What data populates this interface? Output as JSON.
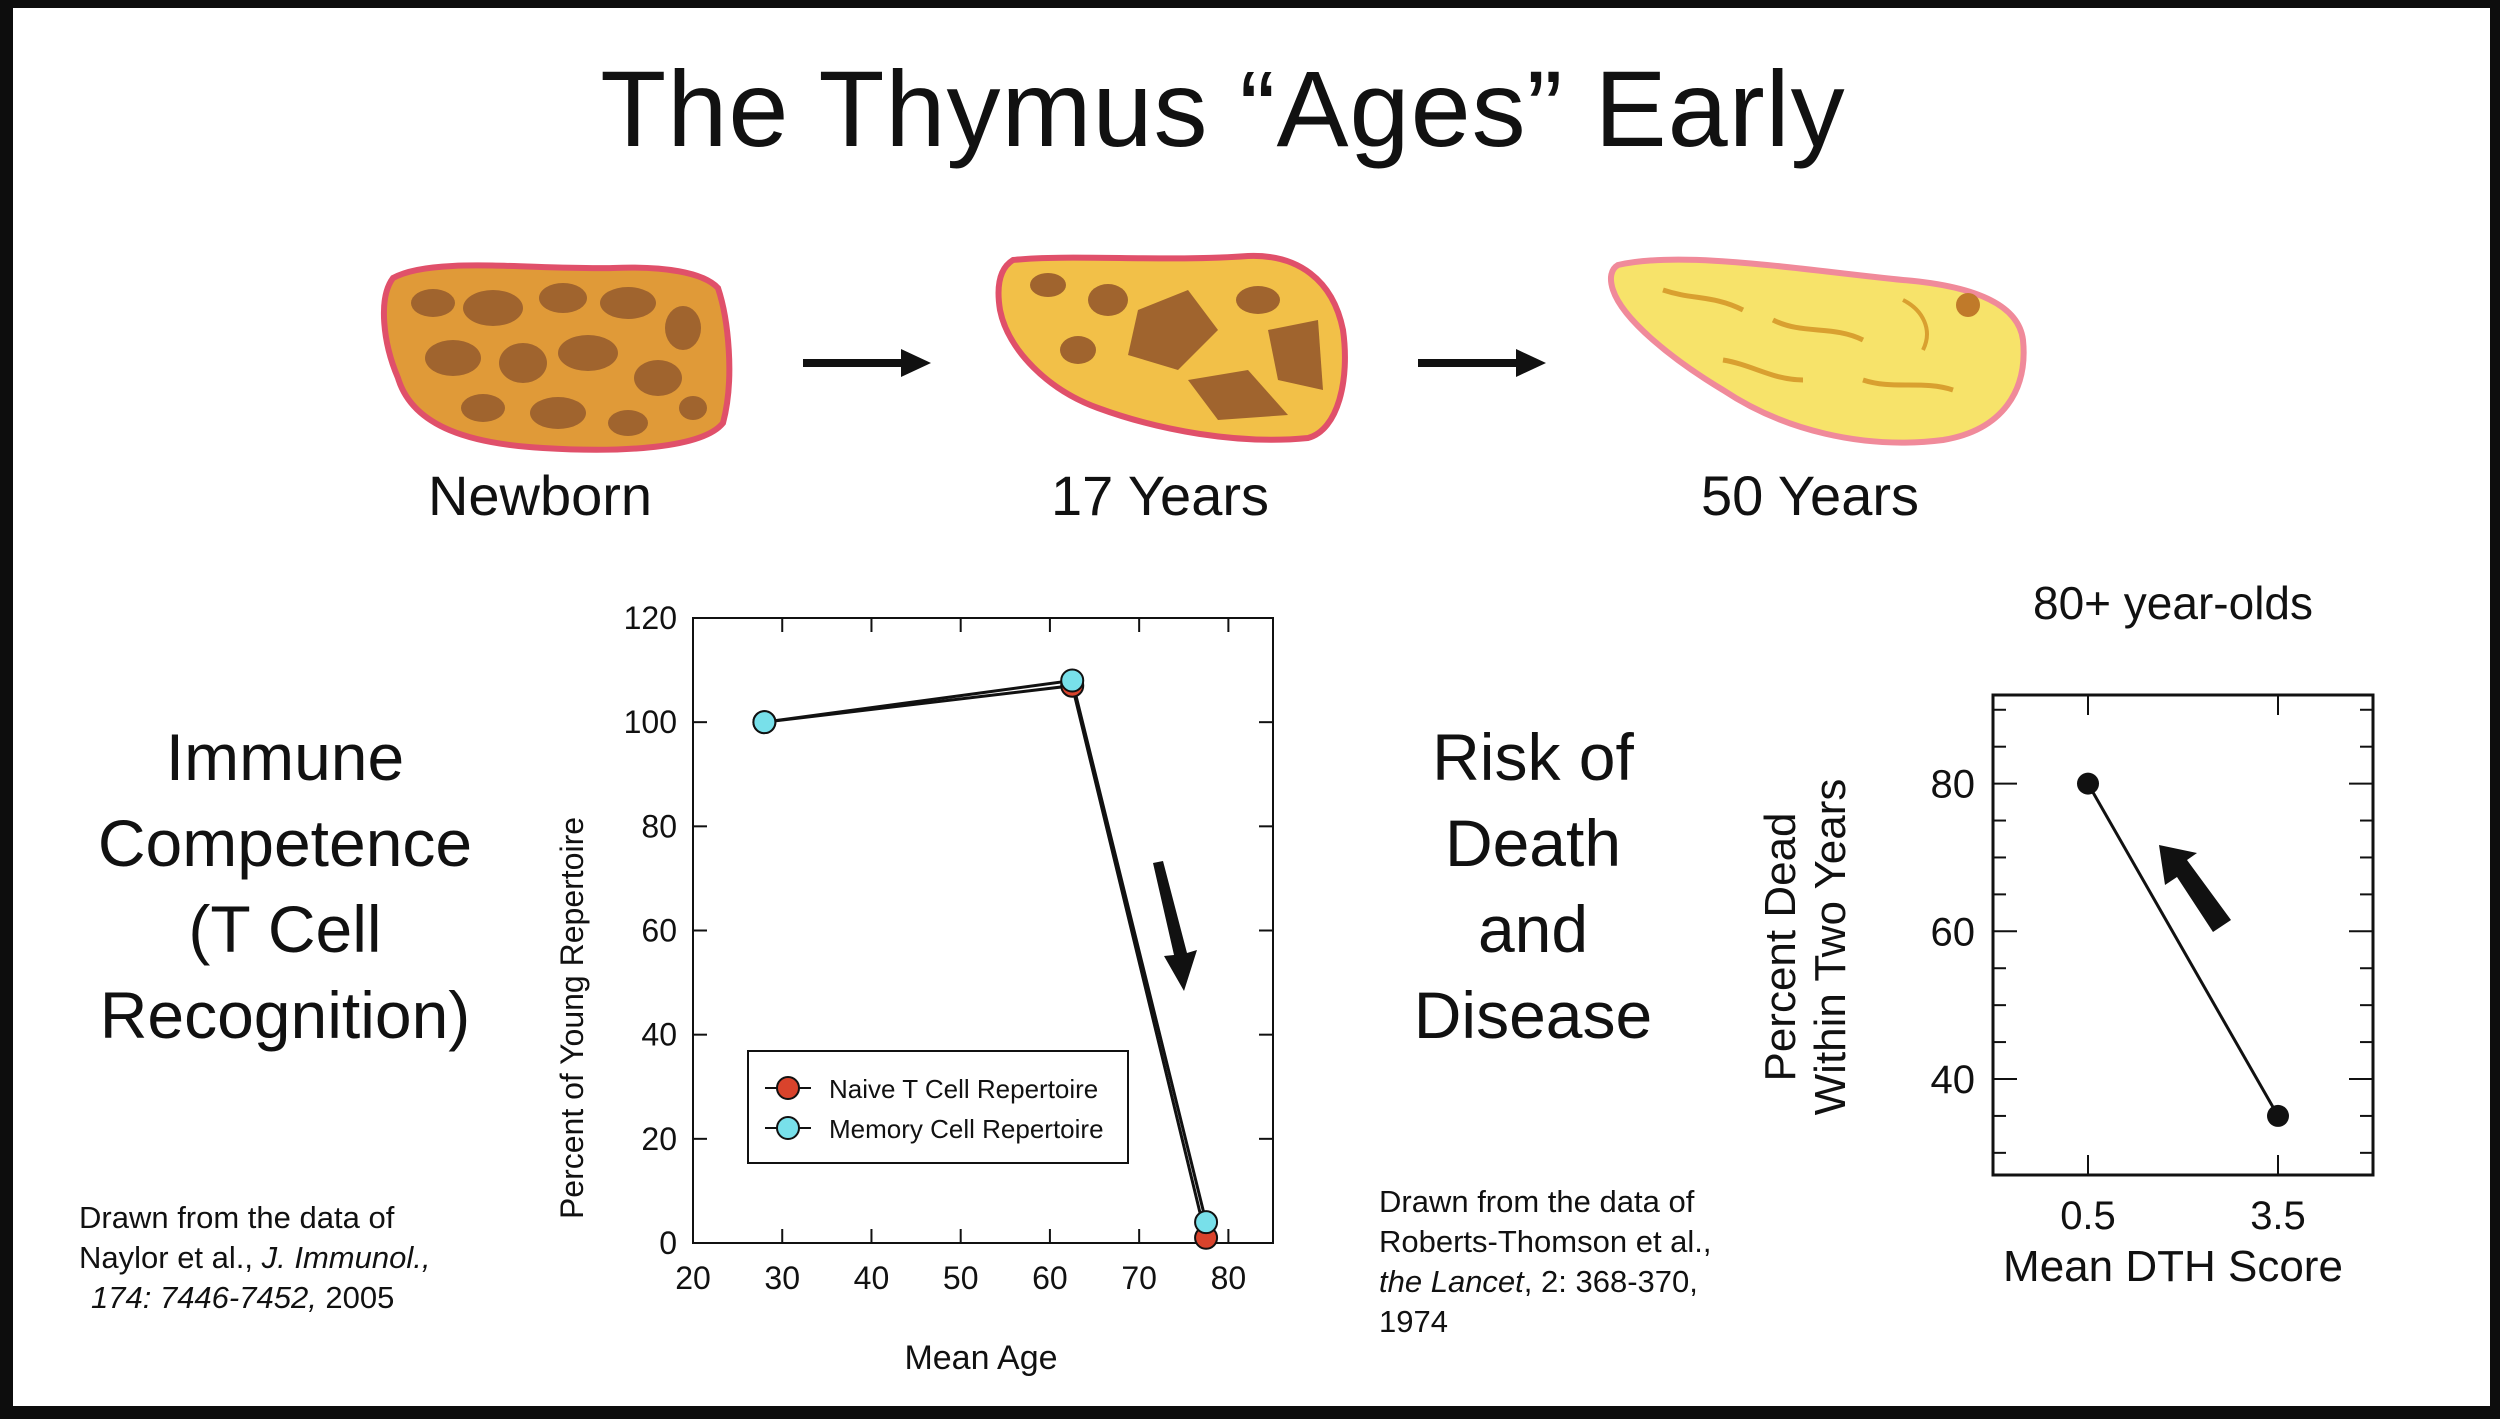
{
  "title": "The Thymus “Ages” Early",
  "stages": [
    {
      "label": "Newborn",
      "icon": "thymus-newborn-illustration"
    },
    {
      "label": "17 Years",
      "icon": "thymus-17-years-illustration"
    },
    {
      "label": "50 Years",
      "icon": "thymus-50-years-illustration"
    }
  ],
  "arrow_icon": "right-arrow-icon",
  "left_panel": {
    "heading_lines": [
      "Immune",
      "Competence",
      "(T Cell",
      "Recognition)"
    ],
    "citation": {
      "line1": "Drawn from the data of",
      "line2_prefix": "Naylor et al., ",
      "line2_italic": "J. Immunol.,",
      "line3_italic": "174: 7446-7452,",
      "line3_suffix": " 2005"
    }
  },
  "right_panel": {
    "heading_lines": [
      "Risk of",
      "Death",
      "and",
      "Disease"
    ],
    "citation": {
      "line1": "Drawn from the data of",
      "line2": "Roberts-Thomson et al.,",
      "line3_italic": "the Lancet",
      "line3_suffix": ", 2: 368-370,",
      "line4": "1974"
    }
  },
  "chart_data": [
    {
      "type": "line",
      "title": "",
      "xlabel": "Mean Age",
      "ylabel": "Percent of Young Repertoire",
      "xlim": [
        20,
        85
      ],
      "ylim": [
        0,
        120
      ],
      "xticks": [
        20,
        30,
        40,
        50,
        60,
        70,
        80
      ],
      "yticks": [
        0,
        20,
        40,
        60,
        80,
        100,
        120
      ],
      "legend_position": "lower-left",
      "annotation_arrow": "down",
      "series": [
        {
          "name": "Naive T Cell Repertoire",
          "color": "#d9432c",
          "x": [
            28,
            62.5,
            77.5
          ],
          "y": [
            100,
            107,
            1
          ]
        },
        {
          "name": "Memory Cell Repertoire",
          "color": "#78e0ea",
          "x": [
            28,
            62.5,
            77.5
          ],
          "y": [
            100,
            108,
            4
          ]
        }
      ]
    },
    {
      "type": "line",
      "title": "80+ year-olds",
      "xlabel": "Mean DTH Score",
      "ylabel_lines": [
        "Percent Dead",
        "Within Two Years"
      ],
      "categories": [
        "0.5",
        "3.5"
      ],
      "ylim": [
        27,
        92
      ],
      "yticks": [
        40,
        60,
        80
      ],
      "annotation_arrow": "up",
      "series": [
        {
          "color": "#111111",
          "values": [
            80,
            35
          ]
        }
      ]
    }
  ]
}
